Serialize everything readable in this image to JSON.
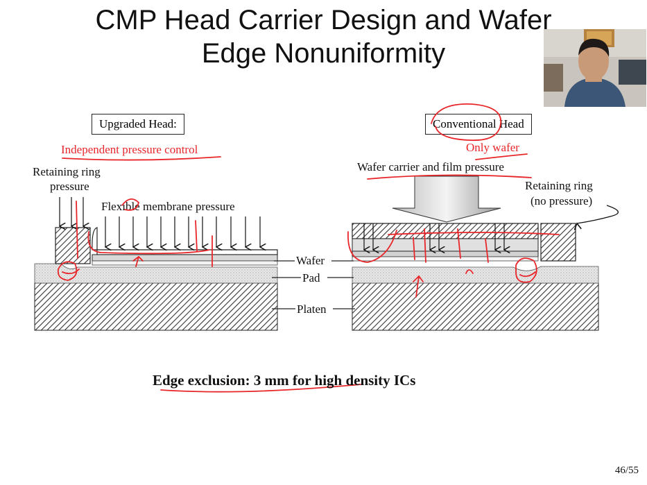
{
  "slide": {
    "title_line1": "CMP Head Carrier Design and Wafer",
    "title_line2": "Edge Nonuniformity",
    "page_number": "46/55"
  },
  "left": {
    "box_label": "Upgraded Head:",
    "annotation": "Independent pressure control",
    "retaining_ring_line1": "Retaining ring",
    "retaining_ring_line2": "pressure",
    "membrane_label": "Flexible membrane pressure"
  },
  "right": {
    "box_label": "Conventional Head",
    "annotation": "Only wafer",
    "carrier_label": "Wafer carrier and film pressure",
    "retaining_ring_line1": "Retaining ring",
    "retaining_ring_line2": "(no pressure)"
  },
  "center_labels": {
    "wafer": "Wafer",
    "pad": "Pad",
    "platen": "Platen"
  },
  "footer": {
    "edge_exclusion": "Edge exclusion: 3 mm for high density ICs"
  },
  "colors": {
    "annotation_red": "#e8262a",
    "hatch": "#333333",
    "pad_fill": "#e6e6e6"
  }
}
